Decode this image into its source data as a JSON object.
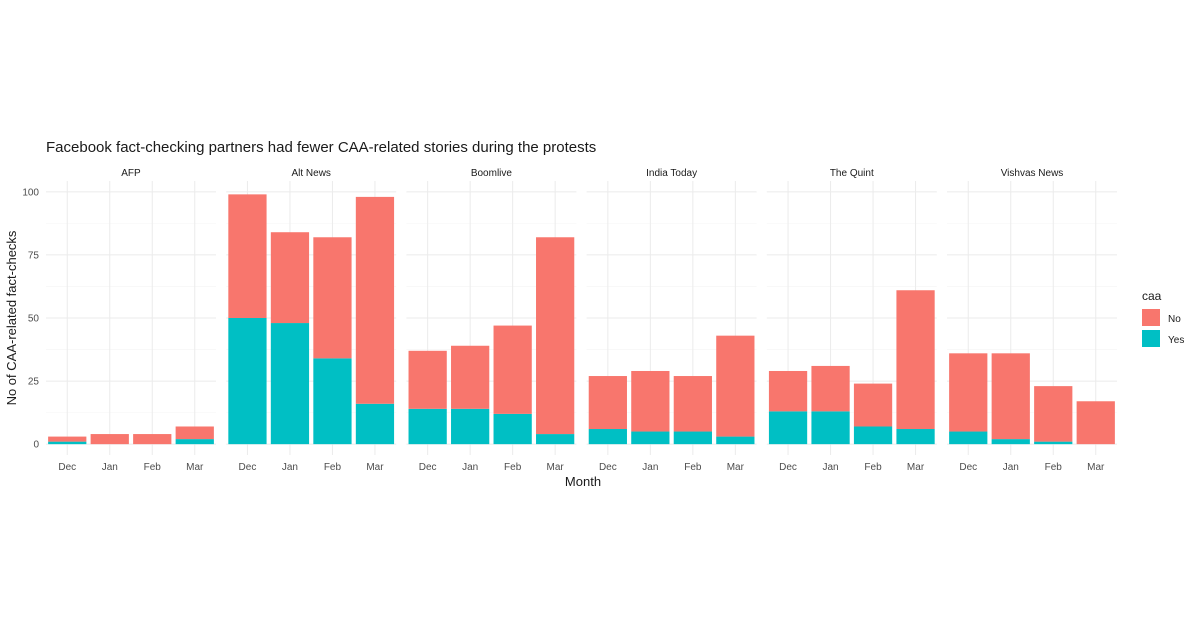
{
  "chart_data": {
    "type": "bar",
    "stacked": true,
    "faceted": true,
    "title": "Facebook fact-checking partners had fewer CAA-related stories during the protests",
    "xlabel": "Month",
    "ylabel": "No of CAA-related fact-checks",
    "ylim": [
      0,
      100
    ],
    "yticks": [
      0,
      25,
      50,
      75,
      100
    ],
    "categories": [
      "Dec",
      "Jan",
      "Feb",
      "Mar"
    ],
    "grid": true,
    "legend": {
      "title": "caa",
      "position": "right",
      "entries": [
        {
          "label": "No",
          "color": "#F8766D"
        },
        {
          "label": "Yes",
          "color": "#00BFC4"
        }
      ]
    },
    "facets": [
      {
        "name": "AFP",
        "series": [
          {
            "name": "Yes",
            "values": [
              1,
              0,
              0,
              2
            ]
          },
          {
            "name": "No",
            "values": [
              2,
              4,
              4,
              5
            ]
          }
        ]
      },
      {
        "name": "Alt News",
        "series": [
          {
            "name": "Yes",
            "values": [
              50,
              48,
              34,
              16
            ]
          },
          {
            "name": "No",
            "values": [
              49,
              36,
              48,
              82
            ]
          }
        ]
      },
      {
        "name": "Boomlive",
        "series": [
          {
            "name": "Yes",
            "values": [
              14,
              14,
              12,
              4
            ]
          },
          {
            "name": "No",
            "values": [
              23,
              25,
              35,
              78
            ]
          }
        ]
      },
      {
        "name": "India Today",
        "series": [
          {
            "name": "Yes",
            "values": [
              6,
              5,
              5,
              3
            ]
          },
          {
            "name": "No",
            "values": [
              21,
              24,
              22,
              40
            ]
          }
        ]
      },
      {
        "name": "The Quint",
        "series": [
          {
            "name": "Yes",
            "values": [
              13,
              13,
              7,
              6
            ]
          },
          {
            "name": "No",
            "values": [
              16,
              18,
              17,
              55
            ]
          }
        ]
      },
      {
        "name": "Vishvas News",
        "series": [
          {
            "name": "Yes",
            "values": [
              5,
              2,
              1,
              0
            ]
          },
          {
            "name": "No",
            "values": [
              31,
              34,
              22,
              17
            ]
          }
        ]
      }
    ]
  }
}
